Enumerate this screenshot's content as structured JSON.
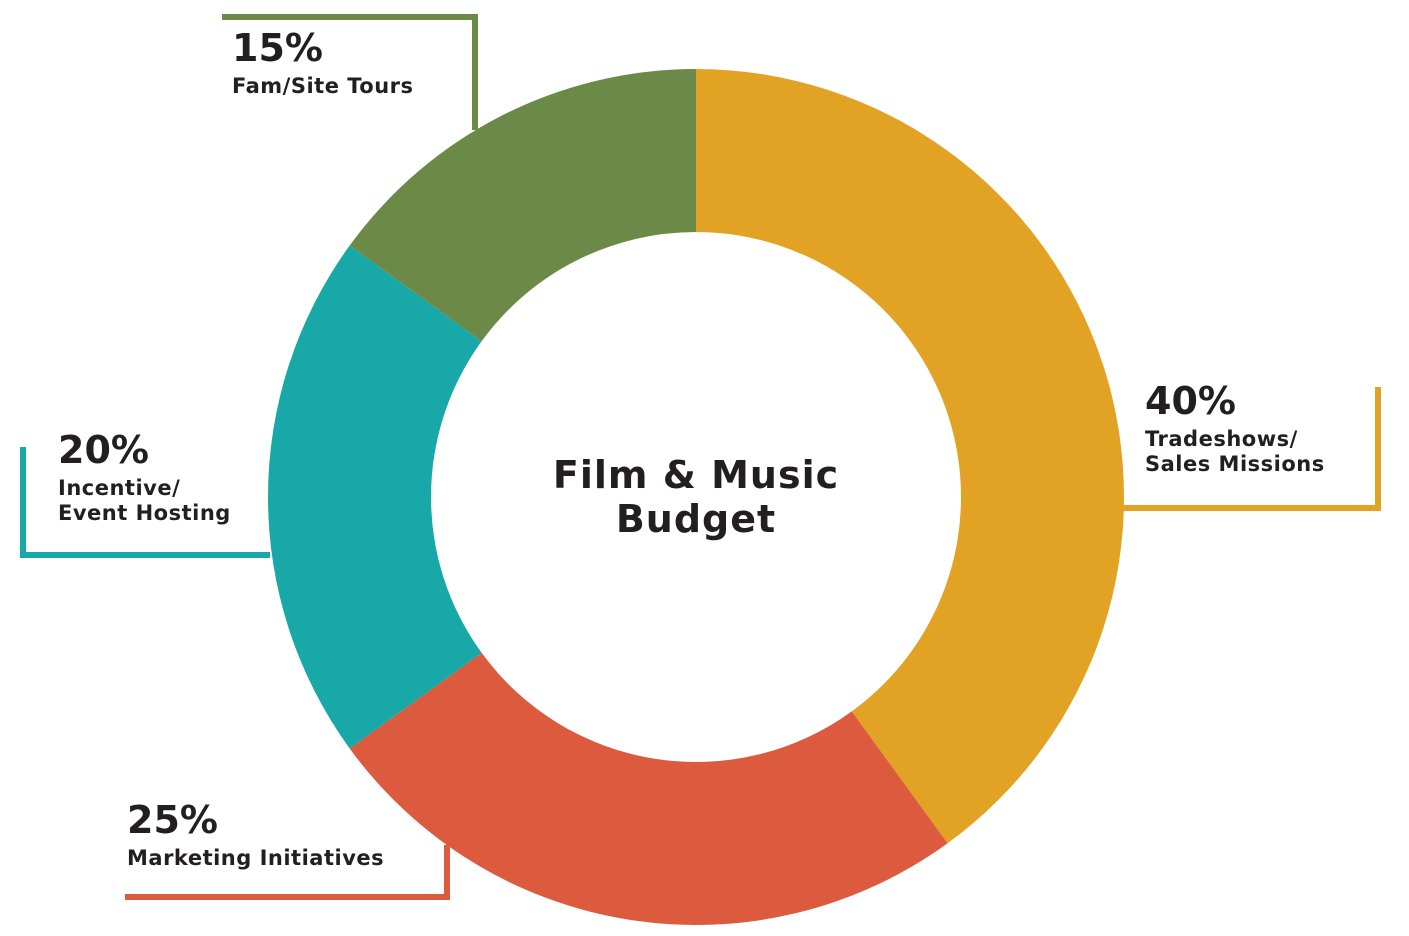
{
  "chart_data": {
    "type": "pie",
    "title": "Film & Music Budget",
    "categories": [
      "Tradeshows/ Sales Missions",
      "Marketing Initiatives",
      "Incentive/ Event Hosting",
      "Fam/Site Tours"
    ],
    "values": [
      40,
      25,
      20,
      15
    ],
    "value_labels": [
      "40%",
      "25%",
      "20%",
      "15%"
    ],
    "colors": [
      "#e2a325",
      "#dc5a3e",
      "#19a8a8",
      "#6c8a47"
    ],
    "donut": true
  }
}
